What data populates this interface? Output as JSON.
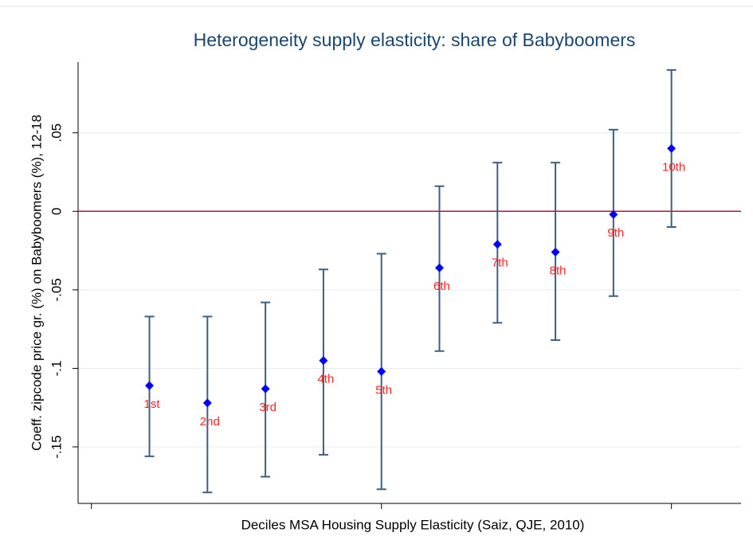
{
  "chart_data": {
    "type": "errorbar",
    "title": "Heterogeneity supply elasticity: share of Babyboomers",
    "ylabel": "Coeff. zipcode price gr. (%) on Babyboomers (%), 12-18",
    "xlabel": "Deciles MSA Housing Supply Elasticity (Saiz, QJE, 2010)",
    "x": [
      1,
      2,
      3,
      4,
      5,
      6,
      7,
      8,
      9,
      10
    ],
    "point_labels": [
      "1st",
      "2nd",
      "3rd",
      "4th",
      "5th",
      "6th",
      "7th",
      "8th",
      "9th",
      "10th"
    ],
    "values": [
      -0.111,
      -0.122,
      -0.113,
      -0.095,
      -0.102,
      -0.036,
      -0.021,
      -0.026,
      -0.002,
      0.04
    ],
    "lower": [
      -0.156,
      -0.179,
      -0.169,
      -0.155,
      -0.177,
      -0.089,
      -0.071,
      -0.082,
      -0.054,
      -0.01
    ],
    "upper": [
      -0.067,
      -0.067,
      -0.058,
      -0.037,
      -0.027,
      0.016,
      0.031,
      0.031,
      0.052,
      0.09
    ],
    "marker_color": "#0000ff",
    "bar_color": "#3e5f80",
    "label_color": "#ff2020",
    "hline": 0,
    "hline_color": "#c0103a",
    "xlim": [
      -0.23,
      11.2
    ],
    "xticks": [
      0,
      5,
      10
    ],
    "show_xtick_labels": false,
    "ylim": [
      -0.186,
      0.095
    ],
    "yticks": [
      {
        "value": -0.15,
        "label": "-.15"
      },
      {
        "value": -0.1,
        "label": "-.1"
      },
      {
        "value": -0.05,
        "label": "-.05"
      },
      0,
      {
        "value": 0.05,
        "label": ".05"
      }
    ],
    "grid": true
  }
}
